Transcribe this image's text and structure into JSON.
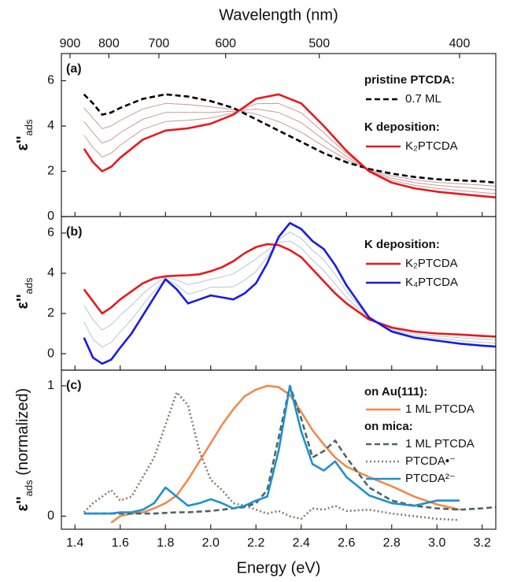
{
  "chart_data": [
    {
      "type": "line",
      "label": "(a)",
      "x2label": "Wavelength (nm)",
      "x2ticks": [
        {
          "value": 1.378,
          "label": "900"
        },
        {
          "value": 1.55,
          "label": "800"
        },
        {
          "value": 1.771,
          "label": "700"
        },
        {
          "value": 2.066,
          "label": "600"
        },
        {
          "value": 2.48,
          "label": "500"
        },
        {
          "value": 3.1,
          "label": "400"
        }
      ],
      "ylabel": [
        "ε''",
        "ads"
      ],
      "xlim": [
        1.34,
        3.26
      ],
      "ylim": [
        0,
        7.2
      ],
      "yticks": [
        0,
        2,
        4,
        6
      ],
      "x": [
        1.44,
        1.48,
        1.52,
        1.56,
        1.6,
        1.7,
        1.8,
        1.9,
        2.0,
        2.1,
        2.2,
        2.3,
        2.4,
        2.5,
        2.6,
        2.7,
        2.8,
        2.9,
        3.0,
        3.1,
        3.2,
        3.26
      ],
      "series": [
        {
          "color": "#c99a9a",
          "values": [
            4.8,
            4.35,
            3.88,
            4.0,
            4.25,
            4.75,
            5.0,
            4.95,
            4.85,
            4.73,
            4.53,
            4.2,
            3.73,
            3.1,
            2.53,
            2.08,
            1.8,
            1.63,
            1.51,
            1.45,
            1.39,
            1.34
          ]
        },
        {
          "color": "#c99a9a",
          "values": [
            4.2,
            3.7,
            3.25,
            3.4,
            3.7,
            4.3,
            4.6,
            4.6,
            4.6,
            4.65,
            4.75,
            4.6,
            4.15,
            3.4,
            2.65,
            2.05,
            1.7,
            1.5,
            1.38,
            1.3,
            1.23,
            1.18
          ]
        },
        {
          "color": "#c99a9a",
          "values": [
            3.6,
            3.05,
            2.63,
            2.8,
            3.15,
            3.85,
            4.2,
            4.25,
            4.35,
            4.58,
            4.98,
            5.0,
            4.58,
            3.7,
            2.78,
            2.03,
            1.6,
            1.38,
            1.24,
            1.15,
            1.06,
            1.01
          ]
        },
        {
          "legend_title": "pristine PTCDA:",
          "name": "0.7 ML",
          "color": "#000000",
          "line_style": "dashed",
          "values": [
            5.4,
            5.0,
            4.5,
            4.6,
            4.8,
            5.2,
            5.4,
            5.3,
            5.1,
            4.8,
            4.3,
            3.8,
            3.3,
            2.8,
            2.4,
            2.1,
            1.9,
            1.75,
            1.65,
            1.6,
            1.55,
            1.5
          ]
        },
        {
          "legend_title": "K deposition:",
          "name": "K₂PTCDA",
          "color": "#e8191b",
          "values": [
            3.0,
            2.4,
            2.0,
            2.2,
            2.6,
            3.4,
            3.8,
            3.9,
            4.1,
            4.5,
            5.2,
            5.4,
            5.0,
            4.0,
            2.9,
            2.0,
            1.5,
            1.25,
            1.1,
            1.0,
            0.9,
            0.85
          ]
        }
      ]
    },
    {
      "type": "line",
      "label": "(b)",
      "ylabel": [
        "ε''",
        "ads"
      ],
      "xlim": [
        1.34,
        3.26
      ],
      "ylim": [
        -0.82,
        6.82
      ],
      "yticks": [
        0,
        2,
        4,
        6
      ],
      "x": [
        1.44,
        1.48,
        1.52,
        1.56,
        1.6,
        1.65,
        1.7,
        1.75,
        1.8,
        1.85,
        1.9,
        1.95,
        2.0,
        2.05,
        2.1,
        2.15,
        2.2,
        2.25,
        2.3,
        2.35,
        2.4,
        2.45,
        2.5,
        2.55,
        2.6,
        2.7,
        2.8,
        2.9,
        3.0,
        3.1,
        3.2,
        3.26
      ],
      "series": [
        {
          "color": "#b4c6d4",
          "values": [
            2.41,
            1.68,
            1.18,
            1.44,
            1.91,
            2.41,
            2.97,
            3.44,
            3.8,
            3.66,
            3.44,
            3.54,
            3.7,
            3.81,
            3.97,
            4.34,
            4.71,
            5.14,
            5.53,
            5.6,
            5.26,
            4.66,
            4.13,
            3.46,
            2.8,
            1.73,
            1.23,
            1.0,
            0.88,
            0.8,
            0.72,
            0.69
          ]
        },
        {
          "color": "#b4c6d4",
          "values": [
            1.59,
            0.72,
            0.33,
            0.56,
            1.09,
            1.69,
            2.43,
            3.11,
            3.75,
            3.42,
            2.96,
            3.11,
            3.3,
            3.3,
            3.33,
            3.66,
            4.09,
            4.81,
            5.67,
            6.05,
            5.74,
            5.14,
            4.67,
            3.94,
            3.1,
            1.77,
            1.17,
            0.9,
            0.77,
            0.65,
            0.56,
            0.52
          ]
        },
        {
          "legend_title": "K deposition:",
          "name": "K₂PTCDA",
          "color": "#e8191b",
          "values": [
            3.2,
            2.6,
            2.0,
            2.3,
            2.7,
            3.1,
            3.5,
            3.75,
            3.85,
            3.88,
            3.9,
            3.95,
            4.1,
            4.3,
            4.6,
            5.0,
            5.3,
            5.45,
            5.4,
            5.15,
            4.8,
            4.2,
            3.6,
            3.0,
            2.5,
            1.7,
            1.3,
            1.1,
            1.0,
            0.95,
            0.88,
            0.85
          ]
        },
        {
          "name": "K₄PTCDA",
          "color": "#1a1ae6",
          "values": [
            0.8,
            -0.2,
            -0.5,
            -0.3,
            0.3,
            1.0,
            1.9,
            2.8,
            3.7,
            3.2,
            2.5,
            2.7,
            2.9,
            2.8,
            2.7,
            3.0,
            3.5,
            4.5,
            5.8,
            6.5,
            6.2,
            5.6,
            5.2,
            4.4,
            3.4,
            1.8,
            1.1,
            0.8,
            0.65,
            0.5,
            0.4,
            0.35
          ]
        }
      ]
    },
    {
      "type": "line",
      "label": "(c)",
      "ylabel": [
        "ε''",
        "ads",
        " (normalized)"
      ],
      "xlabel": "Energy (eV)",
      "xlim": [
        1.34,
        3.26
      ],
      "ylim": [
        -0.1,
        1.12
      ],
      "yticks": [
        0,
        1
      ],
      "xticks": [
        1.4,
        1.6,
        1.8,
        {
          "value": 2,
          "label": "2.0"
        },
        2.2,
        2.4,
        2.6,
        2.8,
        {
          "value": 3,
          "label": "3.0"
        },
        3.2
      ],
      "x": [
        1.44,
        1.48,
        1.52,
        1.56,
        1.6,
        1.65,
        1.7,
        1.75,
        1.8,
        1.85,
        1.9,
        1.95,
        2.0,
        2.05,
        2.1,
        2.15,
        2.2,
        2.25,
        2.3,
        2.35,
        2.4,
        2.45,
        2.5,
        2.55,
        2.6,
        2.7,
        2.8,
        2.9,
        3.0,
        3.1,
        3.2,
        3.26
      ],
      "series": [
        {
          "legend_title": "on Au(111):",
          "name": "1 ML PTCDA",
          "color": "#f08a4b",
          "values": [
            null,
            null,
            null,
            -0.05,
            0.0,
            0.02,
            0.03,
            0.06,
            0.1,
            0.16,
            0.28,
            0.42,
            0.56,
            0.7,
            0.82,
            0.92,
            0.97,
            1.0,
            0.99,
            0.93,
            0.8,
            0.66,
            0.55,
            0.45,
            0.38,
            0.3,
            0.23,
            0.15,
            0.09,
            0.05,
            null,
            null
          ]
        },
        {
          "legend_title": "on mica:",
          "name": "1 ML PTCDA",
          "color": "#4e6464",
          "line_style": "dashed",
          "values": [
            0.02,
            0.02,
            0.02,
            0.02,
            0.02,
            0.02,
            0.02,
            0.02,
            0.025,
            0.03,
            0.03,
            0.035,
            0.04,
            0.05,
            0.06,
            0.07,
            0.1,
            0.2,
            0.6,
            1.0,
            0.75,
            0.45,
            0.5,
            0.58,
            0.45,
            0.22,
            0.12,
            0.08,
            0.06,
            0.05,
            0.06,
            0.07
          ]
        },
        {
          "name": "PTCDA•⁻",
          "color": "#8a7a72",
          "line_style": "dotted",
          "values": [
            0.03,
            0.1,
            0.15,
            0.2,
            0.12,
            0.15,
            0.3,
            0.45,
            0.7,
            0.95,
            0.85,
            0.5,
            0.28,
            0.2,
            0.1,
            0.08,
            0.05,
            0.02,
            0.04,
            0.0,
            -0.02,
            0.06,
            0.05,
            0.08,
            0.04,
            0.05,
            0.02,
            0.0,
            -0.02,
            -0.03,
            null,
            null
          ]
        },
        {
          "name": "PTCDA²⁻",
          "color": "#1e90d0",
          "values": [
            0.02,
            0.02,
            0.02,
            0.02,
            0.03,
            0.03,
            0.05,
            0.1,
            0.22,
            0.15,
            0.08,
            0.1,
            0.13,
            0.1,
            0.06,
            0.08,
            0.12,
            0.15,
            0.5,
            1.0,
            0.65,
            0.4,
            0.35,
            0.42,
            0.3,
            0.16,
            0.1,
            0.08,
            0.12,
            0.12,
            null,
            null
          ]
        }
      ]
    }
  ]
}
